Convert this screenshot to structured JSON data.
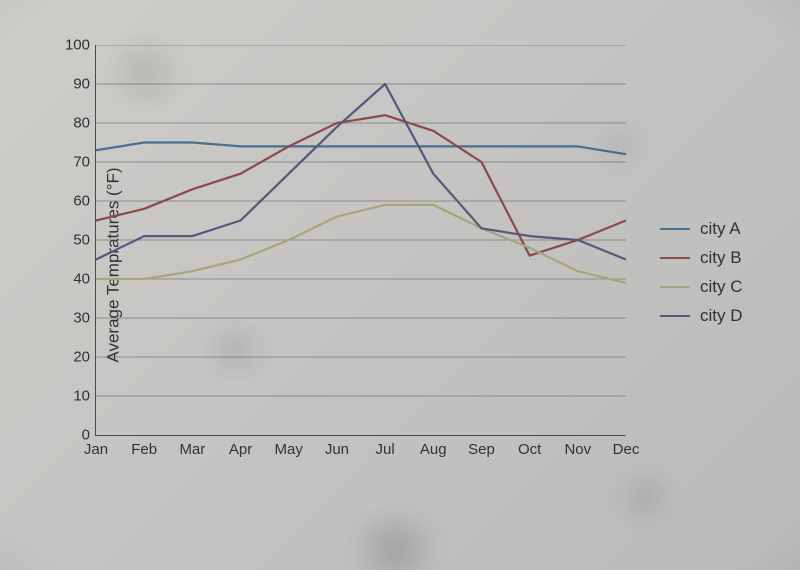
{
  "chart": {
    "type": "line",
    "y_axis": {
      "title": "Average Tempratures (°F)",
      "min": 0,
      "max": 100,
      "tick_step": 10,
      "ticks": [
        0,
        10,
        20,
        30,
        40,
        50,
        60,
        70,
        80,
        90,
        100
      ]
    },
    "x_axis": {
      "categories": [
        "Jan",
        "Feb",
        "Mar",
        "Apr",
        "May",
        "Jun",
        "Jul",
        "Aug",
        "Sep",
        "Oct",
        "Nov",
        "Dec"
      ]
    },
    "grid_color": "#5f5f5f",
    "axis_color": "#4a4a4a",
    "background": "transparent",
    "line_width": 2.2,
    "series": [
      {
        "name": "city A",
        "color": "#4a6f8f",
        "values": [
          73,
          75,
          75,
          74,
          74,
          74,
          74,
          74,
          74,
          74,
          74,
          72
        ]
      },
      {
        "name": "city B",
        "color": "#8a4a4a",
        "values": [
          55,
          58,
          63,
          67,
          74,
          80,
          82,
          78,
          70,
          46,
          50,
          55
        ]
      },
      {
        "name": "city C",
        "color": "#a7a57a",
        "values": [
          40,
          40,
          42,
          45,
          50,
          56,
          59,
          59,
          53,
          48,
          42,
          39
        ]
      },
      {
        "name": "city D",
        "color": "#55587d",
        "values": [
          45,
          51,
          51,
          55,
          67,
          79,
          90,
          67,
          53,
          51,
          50,
          45
        ]
      }
    ],
    "legend": {
      "position": "right"
    }
  }
}
